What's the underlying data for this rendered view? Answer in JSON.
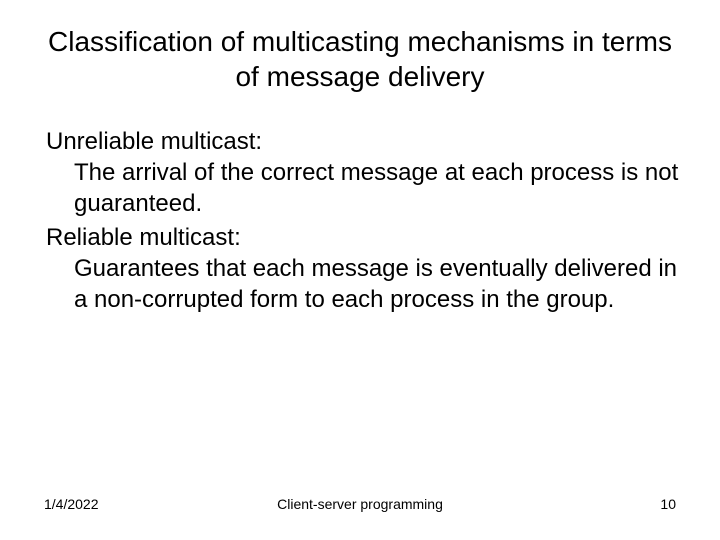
{
  "title_fontsize": 28,
  "body_fontsize": 24,
  "footer_fontsize": 14,
  "text_color": "#000000",
  "background_color": "#ffffff",
  "title": "Classification of multicasting mechanisms in terms of message delivery",
  "content": {
    "term1": "Unreliable multicast:",
    "desc1": "The arrival of the correct message at each process is not guaranteed.",
    "term2": "Reliable multicast:",
    "desc2": "Guarantees that each message is eventually delivered in a non-corrupted form to each process in the group."
  },
  "footer": {
    "date": "1/4/2022",
    "center": "Client-server programming",
    "page": "10"
  }
}
